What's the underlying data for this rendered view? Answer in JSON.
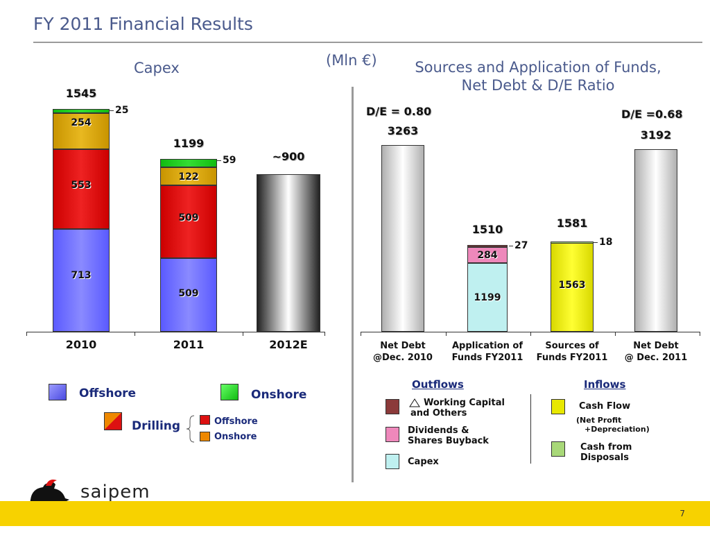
{
  "title": "FY 2011 Financial Results",
  "unit": "(Mln €)",
  "left_title": "Capex",
  "right_title_line1": "Sources and Application of Funds,",
  "right_title_line2": "Net Debt & D/E Ratio",
  "de_left": "D/E = 0.80",
  "de_right": "D/E =0.68",
  "colors": {
    "offshore": "#6b6bff",
    "onshore": "#22cc22",
    "drilling_offshore": "#dd1111",
    "drilling_onshore": "#ddaa00",
    "working_capital": "#8b3a3a",
    "dividends": "#ee88bb",
    "capex": "#bff0f0",
    "cash_flow": "#e8e800",
    "disposals": "#a8d878",
    "net_debt": "#dcdcdc"
  },
  "chart_data": [
    {
      "type": "bar",
      "stacked": true,
      "title": "Capex",
      "categories": [
        "2010",
        "2011",
        "2012E"
      ],
      "series": [
        {
          "name": "Offshore",
          "values": [
            713,
            509,
            null
          ]
        },
        {
          "name": "Drilling Offshore",
          "values": [
            553,
            509,
            null
          ]
        },
        {
          "name": "Drilling Onshore",
          "values": [
            254,
            122,
            null
          ]
        },
        {
          "name": "Onshore",
          "values": [
            25,
            59,
            null
          ]
        }
      ],
      "totals": [
        "1545",
        "1199",
        "~900"
      ],
      "estimate_value": 900,
      "ylim": [
        0,
        1600
      ]
    },
    {
      "type": "bar",
      "stacked": true,
      "title": "Sources and Application of Funds, Net Debt & D/E Ratio",
      "categories": [
        "Net Debt @Dec. 2010",
        "Application of Funds FY2011",
        "Sources of Funds FY2011",
        "Net Debt @ Dec. 2011"
      ],
      "category_lines": [
        [
          "Net Debt",
          "@Dec. 2010"
        ],
        [
          "Application of",
          "Funds FY2011"
        ],
        [
          "Sources of",
          "Funds FY2011"
        ],
        [
          "Net Debt",
          "@ Dec. 2011"
        ]
      ],
      "net_debt": [
        3263,
        null,
        null,
        3192
      ],
      "application": [
        {
          "name": "Capex",
          "value": 1199
        },
        {
          "name": "Dividends & Shares Buyback",
          "value": 284
        },
        {
          "name": "Working Capital and Others",
          "value": 27
        }
      ],
      "application_total": 1510,
      "sources": [
        {
          "name": "Cash Flow",
          "value": 1563
        },
        {
          "name": "Cash from Disposals",
          "value": 18
        }
      ],
      "sources_total": 1581,
      "ratios": {
        "dec_2010": "D/E = 0.80",
        "dec_2011": "D/E =0.68"
      },
      "ylim": [
        0,
        3600
      ]
    }
  ],
  "legend_left": {
    "offshore": "Offshore",
    "onshore": "Onshore",
    "drilling": "Drilling",
    "drilling_offshore": "Offshore",
    "drilling_onshore": "Onshore"
  },
  "legend_right": {
    "outflows": "Outflows",
    "inflows": "Inflows",
    "working_capital_line1": "Working Capital",
    "working_capital_line2": "and Others",
    "dividends_line1": "Dividends &",
    "dividends_line2": "Shares Buyback",
    "capex": "Capex",
    "cash_flow": "Cash Flow",
    "cash_flow_note_line1": "(Net Profit",
    "cash_flow_note_line2": "+Depreciation)",
    "disposals_line1": "Cash from",
    "disposals_line2": "Disposals"
  },
  "logo": "saipem",
  "page_number": "7"
}
